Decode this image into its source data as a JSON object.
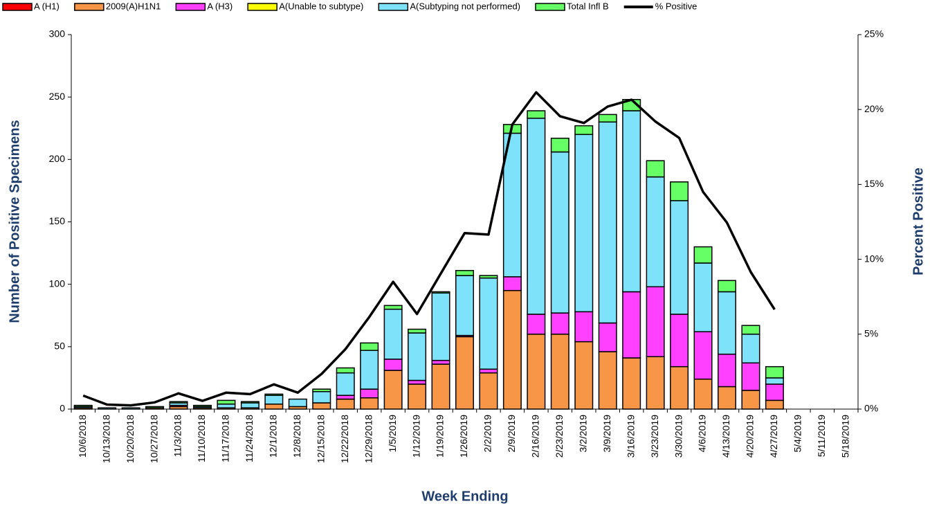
{
  "chart_data": {
    "type": "bar",
    "x_label": "Week Ending",
    "y_label": "Number of  Positive Specimens",
    "y2_label": "Percent Positive",
    "categories": [
      "10/6/2018",
      "10/13/2018",
      "10/20/2018",
      "10/27/2018",
      "11/3/2018",
      "11/10/2018",
      "11/17/2018",
      "11/24/2018",
      "12/1/2018",
      "12/8/2018",
      "12/15/2018",
      "12/22/2018",
      "12/29/2018",
      "1/5/2019",
      "1/12/2019",
      "1/19/2019",
      "1/26/2019",
      "2/2/2019",
      "2/9/2019",
      "2/16/2019",
      "2/23/2019",
      "3/2/2019",
      "3/9/2019",
      "3/16/2019",
      "3/23/2019",
      "3/30/2019",
      "4/6/2019",
      "4/13/2019",
      "4/20/2019",
      "4/27/2019",
      "5/4/2019",
      "5/11/2019",
      "5/18/2019"
    ],
    "series": [
      {
        "name": "A (H1)",
        "color": "#ff0000",
        "values": [
          0,
          0,
          0,
          0,
          0,
          0,
          0,
          0,
          0,
          0,
          0,
          0,
          0,
          0,
          0,
          0,
          0,
          0,
          0,
          0,
          0,
          0,
          0,
          0,
          0,
          0,
          0,
          0,
          0,
          0,
          0,
          0,
          0
        ]
      },
      {
        "name": "2009(A)H1N1",
        "color": "#f79646",
        "values": [
          1,
          0,
          0,
          1,
          2,
          1,
          1,
          1,
          4,
          2,
          5,
          8,
          9,
          31,
          20,
          36,
          58,
          29,
          95,
          60,
          60,
          54,
          46,
          41,
          42,
          34,
          24,
          18,
          15,
          7,
          0,
          0,
          0
        ]
      },
      {
        "name": "A (H3)",
        "color": "#ff40ff",
        "values": [
          0,
          0,
          0,
          0,
          1,
          0,
          0,
          0,
          0,
          0,
          0,
          3,
          7,
          9,
          3,
          3,
          1,
          3,
          11,
          16,
          17,
          24,
          23,
          53,
          56,
          42,
          38,
          26,
          22,
          13,
          0,
          0,
          0
        ]
      },
      {
        "name": "A(Unable to subtype)",
        "color": "#ffff00",
        "values": [
          0,
          0,
          0,
          0,
          0,
          0,
          0,
          0,
          0,
          0,
          0,
          0,
          0,
          0,
          0,
          0,
          0,
          0,
          0,
          0,
          0,
          0,
          0,
          0,
          0,
          0,
          0,
          0,
          0,
          0,
          0,
          0,
          0
        ]
      },
      {
        "name": "A(Subtyping not performed)",
        "color": "#7ee3fa",
        "values": [
          1,
          1,
          1,
          0,
          2,
          1,
          3,
          4,
          7,
          6,
          9,
          18,
          31,
          40,
          38,
          54,
          48,
          73,
          115,
          157,
          129,
          142,
          161,
          145,
          88,
          91,
          55,
          50,
          23,
          5,
          0,
          0,
          0
        ]
      },
      {
        "name": "Total Infl B",
        "color": "#66ff66",
        "values": [
          1,
          0,
          0,
          1,
          1,
          1,
          3,
          1,
          1,
          0,
          2,
          4,
          6,
          3,
          3,
          1,
          4,
          2,
          7,
          6,
          11,
          7,
          6,
          9,
          13,
          15,
          13,
          9,
          7,
          9,
          0,
          0,
          0
        ]
      },
      {
        "name": "% Positive",
        "color": "#000000",
        "type": "line",
        "axis": "y2",
        "values": [
          0.9,
          0.3,
          0.25,
          0.45,
          1.05,
          0.55,
          1.1,
          1.0,
          1.65,
          1.1,
          2.35,
          4.0,
          6.15,
          8.5,
          6.35,
          9.05,
          11.75,
          11.65,
          19.0,
          21.15,
          19.55,
          19.1,
          20.2,
          20.65,
          19.2,
          18.1,
          14.5,
          12.45,
          9.15,
          6.65,
          null,
          null,
          null
        ]
      }
    ],
    "stacked": true,
    "ylim": [
      0,
      300
    ],
    "yticks": [
      0,
      50,
      100,
      150,
      200,
      250,
      300
    ],
    "y2lim": [
      0,
      25
    ],
    "y2ticks": [
      {
        "value": 0,
        "label": "0%"
      },
      {
        "value": 5,
        "label": "5%"
      },
      {
        "value": 10,
        "label": "10%"
      },
      {
        "value": 15,
        "label": "15%"
      },
      {
        "value": 20,
        "label": "20%"
      },
      {
        "value": 25,
        "label": "25%"
      }
    ],
    "legend": "top"
  }
}
